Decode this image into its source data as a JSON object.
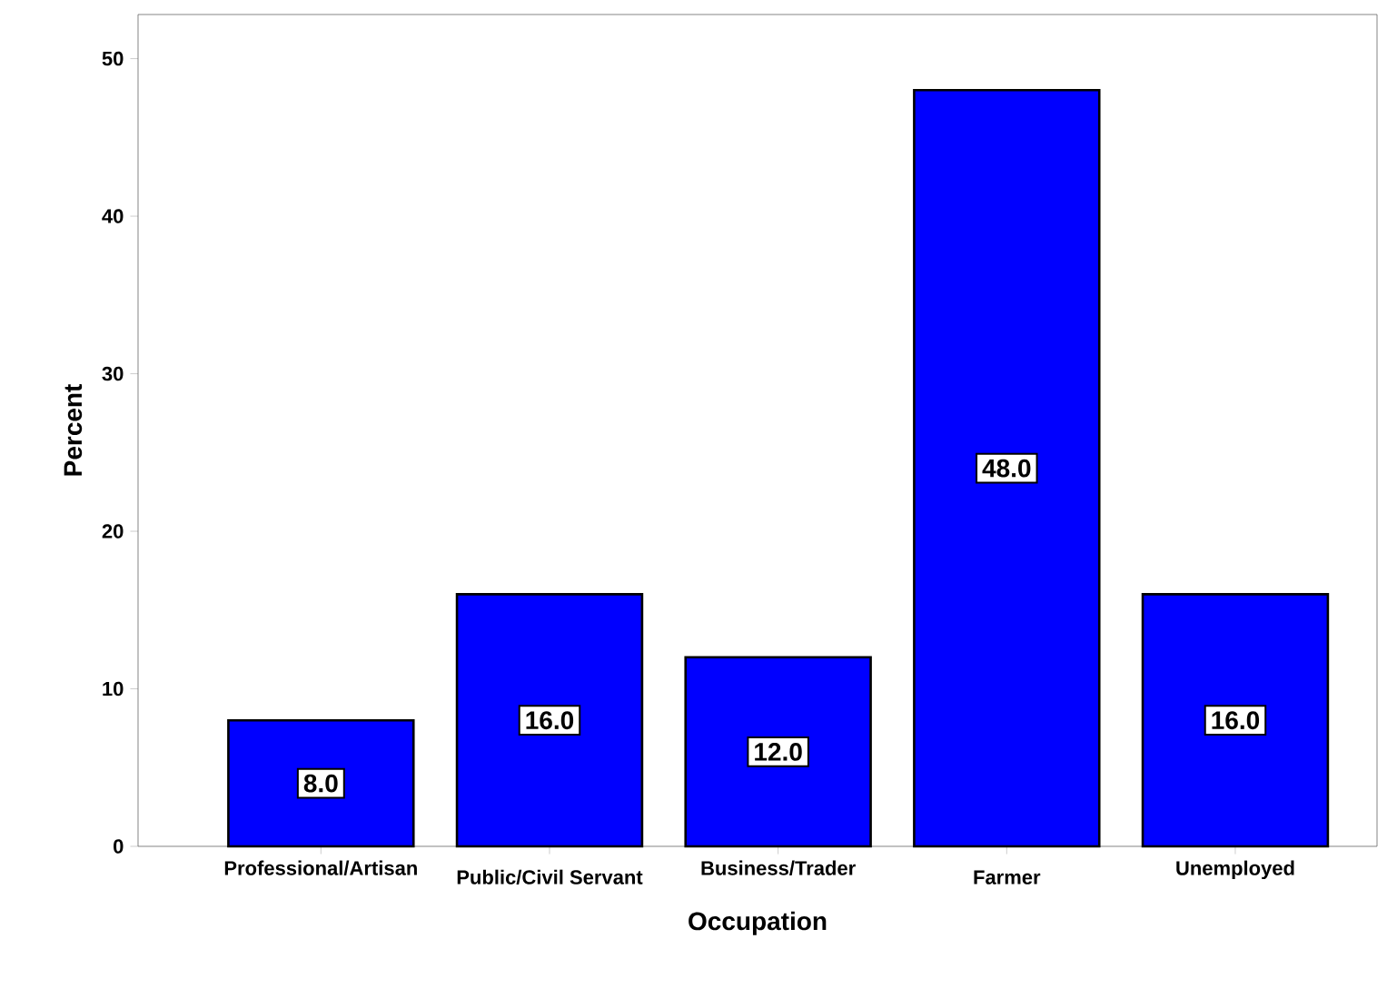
{
  "chart_data": {
    "type": "bar",
    "xlabel": "Occupation",
    "ylabel": "Percent",
    "categories": [
      "Professional/Artisan",
      "Public/Civil Servant",
      "Business/Trader",
      "Farmer",
      "Unemployed"
    ],
    "values": [
      8.0,
      16.0,
      12.0,
      48.0,
      16.0
    ],
    "value_labels": [
      "8.0",
      "16.0",
      "12.0",
      "48.0",
      "16.0"
    ],
    "color": "#0000ff",
    "ylim": [
      0,
      52.8
    ],
    "yticks": [
      0,
      10,
      20,
      30,
      40,
      50
    ],
    "grid": false
  }
}
